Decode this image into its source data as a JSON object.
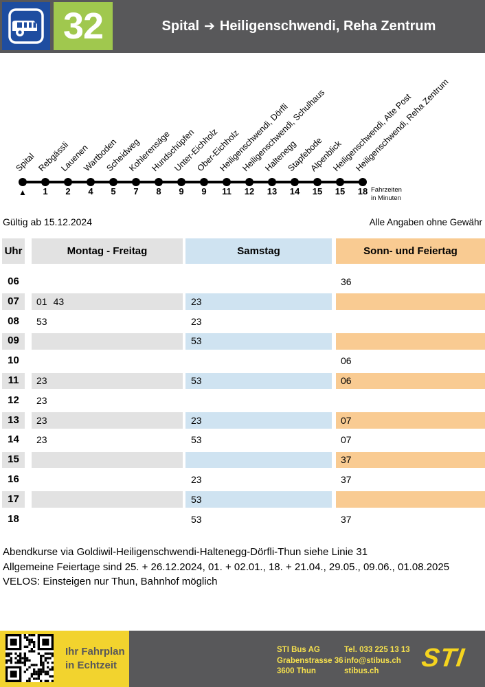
{
  "header": {
    "line_number": "32",
    "from": "Spital",
    "arrow": "➔",
    "to": "Heiligenschwendi, Reha Zentrum"
  },
  "route": {
    "origin_marker": "▲",
    "travel_time_label_line1": "Fahrzeiten",
    "travel_time_label_line2": "in Minuten",
    "stops": [
      {
        "name": "Spital",
        "minutes": ""
      },
      {
        "name": "Rebgässli",
        "minutes": "1"
      },
      {
        "name": "Lauenen",
        "minutes": "2"
      },
      {
        "name": "Wartboden",
        "minutes": "4"
      },
      {
        "name": "Scheidweg",
        "minutes": "5"
      },
      {
        "name": "Kohlerensäge",
        "minutes": "7"
      },
      {
        "name": "Hundschüpfen",
        "minutes": "8"
      },
      {
        "name": "Unter-Eichholz",
        "minutes": "9"
      },
      {
        "name": "Ober-Eichholz",
        "minutes": "9"
      },
      {
        "name": "Heiligenschwendi, Dörfli",
        "minutes": "11"
      },
      {
        "name": "Heiligenschwendi, Schulhaus",
        "minutes": "12"
      },
      {
        "name": "Haltenegg",
        "minutes": "13"
      },
      {
        "name": "Stapfebode",
        "minutes": "14"
      },
      {
        "name": "Alpenblick",
        "minutes": "15"
      },
      {
        "name": "Heiligenschwendi, Alte Post",
        "minutes": "15"
      },
      {
        "name": "Heiligenschwendi, Reha Zentrum",
        "minutes": "18"
      }
    ]
  },
  "validity": {
    "left": "Gültig ab 15.12.2024",
    "right": "Alle Angaben ohne Gewähr"
  },
  "timetable": {
    "columns": {
      "hour": "Uhr",
      "weekday": "Montag - Freitag",
      "saturday": "Samstag",
      "sunday": "Sonn- und Feiertag"
    },
    "rows": [
      {
        "hour": "06",
        "weekday": [],
        "saturday": [],
        "sunday": [
          "36"
        ]
      },
      {
        "hour": "07",
        "weekday": [
          "01",
          "43"
        ],
        "saturday": [
          "23"
        ],
        "sunday": []
      },
      {
        "hour": "08",
        "weekday": [
          "53"
        ],
        "saturday": [
          "23"
        ],
        "sunday": []
      },
      {
        "hour": "09",
        "weekday": [],
        "saturday": [
          "53"
        ],
        "sunday": []
      },
      {
        "hour": "10",
        "weekday": [],
        "saturday": [],
        "sunday": [
          "06"
        ]
      },
      {
        "hour": "11",
        "weekday": [
          "23"
        ],
        "saturday": [
          "53"
        ],
        "sunday": [
          "06"
        ]
      },
      {
        "hour": "12",
        "weekday": [
          "23"
        ],
        "saturday": [],
        "sunday": []
      },
      {
        "hour": "13",
        "weekday": [
          "23"
        ],
        "saturday": [
          "23"
        ],
        "sunday": [
          "07"
        ]
      },
      {
        "hour": "14",
        "weekday": [
          "23"
        ],
        "saturday": [
          "53"
        ],
        "sunday": [
          "07"
        ]
      },
      {
        "hour": "15",
        "weekday": [],
        "saturday": [],
        "sunday": [
          "37"
        ]
      },
      {
        "hour": "16",
        "weekday": [],
        "saturday": [
          "23"
        ],
        "sunday": [
          "37"
        ]
      },
      {
        "hour": "17",
        "weekday": [],
        "saturday": [
          "53"
        ],
        "sunday": []
      },
      {
        "hour": "18",
        "weekday": [],
        "saturday": [
          "53"
        ],
        "sunday": [
          "37"
        ]
      }
    ]
  },
  "notes": [
    "Abendkurse via Goldiwil-Heiligenschwendi-Haltenegg-Dörfli-Thun siehe Linie 31",
    "Allgemeine Feiertage sind 25. + 26.12.2024, 01. + 02.01., 18. + 21.04., 29.05., 09.06., 01.08.2025",
    "VELOS: Einsteigen nur Thun, Bahnhof möglich"
  ],
  "footer": {
    "realtime_label_line1": "Ihr Fahrplan",
    "realtime_label_line2": "in Echtzeit",
    "company_line1": "STI Bus AG",
    "company_line2": "Grabenstrasse 36",
    "company_line3": "3600 Thun",
    "contact_line1": "Tel. 033 225 13 13",
    "contact_line2": "info@stibus.ch",
    "contact_line3": "stibus.ch",
    "logo_text": "STI"
  },
  "colors": {
    "header_bar": "#58585a",
    "line_badge_blue": "#1e4da0",
    "line_badge_green": "#a0c84e",
    "weekday_band": "#e2e2e2",
    "saturday_band": "#cfe3f1",
    "sunday_band": "#f9cb92",
    "footer_yellow": "#f2d32e"
  }
}
